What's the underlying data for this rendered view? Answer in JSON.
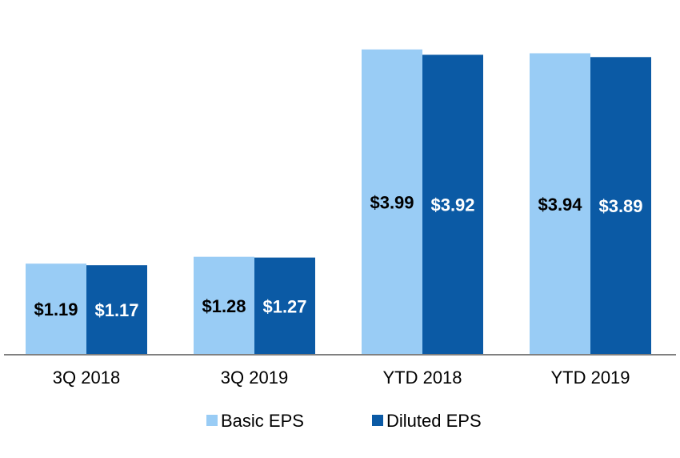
{
  "chart_data": {
    "type": "bar",
    "title": "",
    "xlabel": "",
    "ylabel": "",
    "categories": [
      "3Q 2018",
      "3Q 2019",
      "YTD 2018",
      "YTD 2019"
    ],
    "series": [
      {
        "name": "Basic EPS",
        "color": "#99ccf5",
        "label_color": "#000000",
        "values": [
          1.19,
          1.28,
          3.99,
          3.94
        ],
        "labels": [
          "$1.19",
          "$1.28",
          "$3.99",
          "$3.94"
        ]
      },
      {
        "name": "Diluted EPS",
        "color": "#0b5aa5",
        "label_color": "#ffffff",
        "values": [
          1.17,
          1.27,
          3.92,
          3.89
        ],
        "labels": [
          "$1.17",
          "$1.27",
          "$3.92",
          "$3.89"
        ]
      }
    ],
    "ylim": [
      0,
      4.5
    ],
    "grid": false,
    "legend_position": "bottom-center",
    "axis_color": "#808080"
  }
}
